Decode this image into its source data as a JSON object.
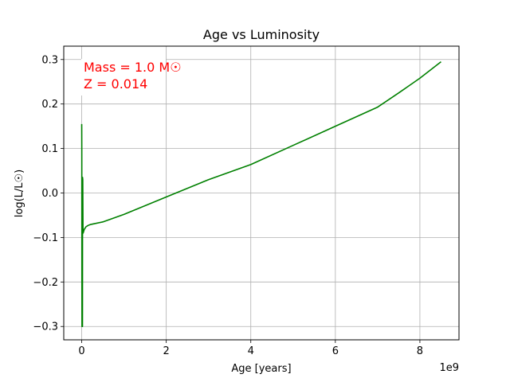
{
  "chart_data": {
    "type": "line",
    "title": "Age vs Luminosity",
    "xlabel": "Age [years]",
    "ylabel": "log(L/L☉)",
    "x_offset_label": "1e9",
    "xlim": [
      -0.425,
      8.925
    ],
    "ylim": [
      -0.33,
      0.33
    ],
    "x_ticks": [
      0,
      2,
      4,
      6,
      8
    ],
    "x_tick_labels": [
      "0",
      "2",
      "4",
      "6",
      "8"
    ],
    "y_ticks": [
      -0.3,
      -0.2,
      -0.1,
      0.0,
      0.1,
      0.2,
      0.3
    ],
    "y_tick_labels": [
      "−0.3",
      "−0.2",
      "−0.1",
      "0.0",
      "0.1",
      "0.2",
      "0.3"
    ],
    "grid": true,
    "annotations": [
      "Mass = 1.0 M☉",
      "Z = 0.014"
    ],
    "annotation_color": "#ff0000",
    "series": [
      {
        "name": "luminosity",
        "color": "#008000",
        "x": [
          0.0,
          0.002,
          0.004,
          0.006,
          0.008,
          0.01,
          0.012,
          0.014,
          0.016,
          0.018,
          0.02,
          0.025,
          0.03,
          0.035,
          0.04,
          0.05,
          0.06,
          0.08,
          0.1,
          0.15,
          0.2,
          0.3,
          0.5,
          1.0,
          2.0,
          3.0,
          4.0,
          5.0,
          6.0,
          7.0,
          7.5,
          8.0,
          8.5
        ],
        "y": [
          0.155,
          0.1,
          -0.2,
          -0.3,
          0.0,
          -0.05,
          -0.1,
          -0.07,
          -0.28,
          -0.3,
          0.035,
          0.03,
          -0.08,
          -0.09,
          -0.088,
          -0.085,
          -0.082,
          -0.079,
          -0.076,
          -0.073,
          -0.071,
          -0.069,
          -0.065,
          -0.048,
          -0.009,
          0.03,
          0.064,
          0.107,
          0.15,
          0.193,
          0.225,
          0.258,
          0.295
        ]
      }
    ]
  }
}
